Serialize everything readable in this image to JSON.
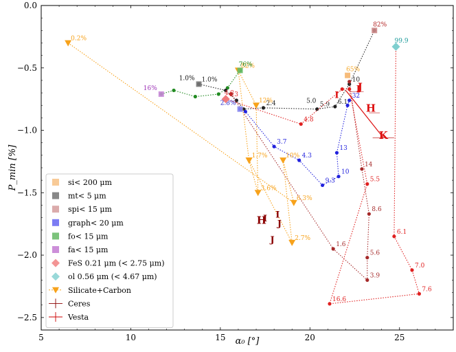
{
  "chart_data": {
    "type": "scatter",
    "xlabel": "α₀ [°]",
    "ylabel": "P_min [%]",
    "xlim": [
      5,
      28
    ],
    "ylim": [
      -2.6,
      0.0
    ],
    "x_ticks": [
      5,
      10,
      15,
      20,
      25
    ],
    "y_ticks": [
      0.0,
      -0.5,
      -1.0,
      -1.5,
      -2.0,
      -2.5
    ],
    "x_tick_labels": [
      "5",
      "10",
      "15",
      "20",
      "25"
    ],
    "y_tick_labels": [
      "0.0",
      "−0.5",
      "−1.0",
      "−1.5",
      "−2.0",
      "−2.5"
    ],
    "legend_position": "lower-left",
    "legend": [
      {
        "label": "si< 200 μm",
        "marker": "square",
        "color": "#f5b46b"
      },
      {
        "label": "mt< 5 μm",
        "marker": "square",
        "color": "#555555"
      },
      {
        "label": "spi< 15 μm",
        "marker": "square",
        "color": "#cc8888"
      },
      {
        "label": "graph< 20 μm",
        "marker": "square",
        "color": "#4444ee"
      },
      {
        "label": "fo< 15 μm",
        "marker": "square",
        "color": "#44aa44"
      },
      {
        "label": "fa< 15 μm",
        "marker": "square",
        "color": "#b760c9"
      },
      {
        "label": "FeS 0.21 μm (< 2.75 μm)",
        "marker": "diamond",
        "color": "#f07a7a"
      },
      {
        "label": "ol 0.56 μm (< 4.67 μm)",
        "marker": "diamond",
        "color": "#7fcfcf"
      },
      {
        "label": "Silicate+Carbon",
        "marker": "triangle-down",
        "color": "#f7a21b"
      },
      {
        "label": "Ceres",
        "marker": "errorbar",
        "color": "#8b0000"
      },
      {
        "label": "Vesta",
        "marker": "errorbar",
        "color": "#cc0000"
      }
    ],
    "end_markers": [
      {
        "name": "si",
        "x": 22.1,
        "y": -0.56,
        "label": "65%",
        "color": "#f5a623",
        "fill": "#f5b46b"
      },
      {
        "name": "mt",
        "x": 13.8,
        "y": -0.63,
        "label": "1.0%",
        "color": "#111111",
        "fill": "#777777"
      },
      {
        "name": "spi",
        "x": 23.6,
        "y": -0.2,
        "label": "82%",
        "color": "#b22222",
        "fill": "#cc8888"
      },
      {
        "name": "graph",
        "x": 16.1,
        "y": -0.83,
        "label": "2.8%",
        "color": "#2222cc",
        "fill": "#8888ee"
      },
      {
        "name": "fo",
        "x": 16.1,
        "y": -0.52,
        "label": "76%",
        "color": "#228b22",
        "fill": "#66bb66"
      },
      {
        "name": "fa",
        "x": 11.7,
        "y": -0.71,
        "label": "16%",
        "color": "#9b30b5",
        "fill": "#c888d8"
      },
      {
        "name": "fes",
        "x": 15.3,
        "y": -0.75,
        "label": "4.3",
        "color": "#e03030",
        "fill": "#f07a7a"
      },
      {
        "name": "ol",
        "x": 24.8,
        "y": -0.33,
        "label": "99.9",
        "color": "#1a9a9a",
        "fill": "#7fcfcf"
      }
    ],
    "series": [
      {
        "name": "fa",
        "color": "#228b22",
        "points": [
          [
            11.7,
            -0.71
          ],
          [
            12.4,
            -0.68
          ],
          [
            13.6,
            -0.73
          ],
          [
            14.9,
            -0.71
          ],
          [
            15.4,
            -0.66
          ],
          [
            16.1,
            -0.52
          ]
        ],
        "labels": []
      },
      {
        "name": "mt",
        "color": "#222222",
        "points": [
          [
            13.8,
            -0.63
          ],
          [
            15.3,
            -0.68
          ],
          [
            15.9,
            -0.76
          ],
          [
            16.3,
            -0.83
          ],
          [
            17.4,
            -0.82
          ],
          [
            20.4,
            -0.83
          ],
          [
            21.4,
            -0.81
          ],
          [
            22.2,
            -0.63
          ],
          [
            23.6,
            -0.2
          ]
        ],
        "labels": [
          "1.0%",
          "",
          "",
          "",
          "2.4",
          "5.9",
          "6.1",
          "10",
          ""
        ],
        "extra_labels": [
          {
            "text": "5.0",
            "x": 19.8,
            "y": -0.78
          }
        ]
      },
      {
        "name": "graph",
        "color": "#2222dd",
        "points": [
          [
            16.1,
            -0.83
          ],
          [
            16.4,
            -0.85
          ],
          [
            18.0,
            -1.13
          ],
          [
            19.4,
            -1.24
          ],
          [
            20.7,
            -1.44
          ],
          [
            21.6,
            -1.37
          ],
          [
            21.5,
            -1.18
          ],
          [
            22.1,
            -0.8
          ],
          [
            22.2,
            -0.76
          ]
        ],
        "labels": [
          "",
          "",
          "3.7",
          "4.3",
          "9.3",
          "10",
          "13",
          "",
          "32"
        ]
      },
      {
        "name": "spi",
        "color": "#a52a2a",
        "points": [
          [
            15.6,
            -0.71
          ],
          [
            21.3,
            -1.95
          ],
          [
            23.2,
            -2.2
          ],
          [
            23.2,
            -2.02
          ],
          [
            23.3,
            -1.67
          ],
          [
            22.9,
            -1.31
          ],
          [
            22.2,
            -0.61
          ]
        ],
        "labels": [
          "",
          "1.6",
          "3.9",
          "5.6",
          "8.6",
          "14",
          ""
        ]
      },
      {
        "name": "fes",
        "color": "#e02020",
        "points": [
          [
            15.3,
            -0.75
          ],
          [
            19.5,
            -0.95
          ],
          [
            21.8,
            -0.67
          ],
          [
            22.2,
            -0.67
          ],
          [
            23.2,
            -1.43
          ],
          [
            21.1,
            -2.39
          ],
          [
            26.1,
            -2.31
          ],
          [
            25.7,
            -2.12
          ],
          [
            24.7,
            -1.85
          ],
          [
            24.8,
            -0.33
          ]
        ],
        "labels": [
          "4.3",
          "4.8",
          "",
          "",
          "5.5",
          "16.6",
          "7.6",
          "7.0",
          "6.1",
          ""
        ]
      },
      {
        "name": "Silicate+Carbon",
        "color": "#f7a21b",
        "points": [
          [
            6.5,
            -0.3
          ],
          [
            19.1,
            -1.58
          ],
          [
            18.5,
            -1.24
          ],
          [
            19.0,
            -1.9
          ],
          [
            16.6,
            -1.24
          ],
          [
            16.0,
            -0.52
          ],
          [
            17.0,
            -0.8
          ],
          [
            17.1,
            -1.5
          ],
          [
            16.6,
            -1.24
          ]
        ],
        "labels": [
          "0.2%",
          "6.3%",
          "10%",
          "2.7%",
          "1.7%",
          "82%",
          "12%",
          "3.6%",
          ""
        ]
      }
    ],
    "text_labels": [
      {
        "text": "I",
        "x": 21.5,
        "y": -0.74,
        "color": "#dd1111",
        "size": 13
      },
      {
        "text": "I",
        "x": 22.7,
        "y": -0.69,
        "color": "#dd1111",
        "size": 13
      },
      {
        "text": "J",
        "x": 22.8,
        "y": -0.68,
        "color": "#dd1111",
        "size": 15
      },
      {
        "text": "H",
        "x": 23.4,
        "y": -0.85,
        "color": "#dd1111",
        "size": 15
      },
      {
        "text": "K",
        "x": 24.1,
        "y": -1.07,
        "color": "#dd1111",
        "size": 15
      },
      {
        "text": "H",
        "x": 17.3,
        "y": -1.75,
        "color": "#8b0000",
        "size": 15
      },
      {
        "text": "I",
        "x": 17.5,
        "y": -1.73,
        "color": "#8b0000",
        "size": 13
      },
      {
        "text": "I",
        "x": 18.2,
        "y": -1.7,
        "color": "#8b0000",
        "size": 13
      },
      {
        "text": "J",
        "x": 18.3,
        "y": -1.77,
        "color": "#8b0000",
        "size": 13
      },
      {
        "text": "J",
        "x": 17.9,
        "y": -1.9,
        "color": "#8b0000",
        "size": 13
      }
    ],
    "vesta_errorbars": [
      {
        "x": 22.6,
        "y": -0.69,
        "xerr": 0.4
      },
      {
        "x": 23.6,
        "y": -0.86,
        "xerr": 0.3
      },
      {
        "x": 24.1,
        "y": -1.06,
        "xerr": 0.6
      }
    ],
    "vesta_line": [
      [
        22.0,
        -0.68
      ],
      [
        24.1,
        -1.06
      ]
    ]
  }
}
